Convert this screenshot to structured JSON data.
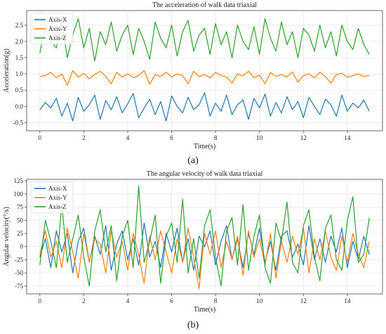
{
  "figure": {
    "panels": [
      {
        "letter": "(a)"
      },
      {
        "letter": "(b)"
      }
    ]
  },
  "colors": {
    "x": "#1f77b4",
    "y": "#ff7f0e",
    "z": "#2ca02c",
    "grid": "#e6e6e6",
    "frame": "#444444"
  },
  "chart_data": [
    {
      "type": "line",
      "title": "The acceleration of walk data triaxial",
      "xlabel": "Time(s)",
      "ylabel": "Acceleration(g)",
      "xlim": [
        -0.6,
        15.6
      ],
      "ylim": [
        -0.75,
        2.95
      ],
      "xticks": [
        0,
        2,
        4,
        6,
        8,
        10,
        12,
        14
      ],
      "yticks": [
        -0.5,
        0.0,
        0.5,
        1.0,
        1.5,
        2.0,
        2.5
      ],
      "ytick_labels": [
        "-0.5",
        "0.0",
        "0.5",
        "1.0",
        "1.5",
        "2.0",
        "2.5"
      ],
      "grid": true,
      "legend": "top-left",
      "x": [
        0,
        0.25,
        0.5,
        0.75,
        1,
        1.25,
        1.5,
        1.75,
        2,
        2.25,
        2.5,
        2.75,
        3,
        3.25,
        3.5,
        3.75,
        4,
        4.25,
        4.5,
        4.75,
        5,
        5.25,
        5.5,
        5.75,
        6,
        6.25,
        6.5,
        6.75,
        7,
        7.25,
        7.5,
        7.75,
        8,
        8.25,
        8.5,
        8.75,
        9,
        9.25,
        9.5,
        9.75,
        10,
        10.25,
        10.5,
        10.75,
        11,
        11.25,
        11.5,
        11.75,
        12,
        12.25,
        12.5,
        12.75,
        13,
        13.25,
        13.5,
        13.75,
        14,
        14.25,
        14.5,
        14.75,
        15
      ],
      "series": [
        {
          "name": "Axis-X",
          "values": [
            -0.1,
            0.12,
            -0.05,
            0.25,
            -0.3,
            0.1,
            -0.45,
            0.28,
            -0.15,
            0.05,
            0.35,
            -0.4,
            0.18,
            -0.1,
            0.3,
            -0.2,
            0.08,
            0.4,
            -0.35,
            -0.05,
            0.22,
            -0.25,
            0.15,
            -0.45,
            0.32,
            0.0,
            -0.2,
            0.28,
            -0.1,
            0.05,
            0.42,
            -0.3,
            0.1,
            -0.15,
            0.35,
            -0.25,
            0.05,
            0.2,
            -0.4,
            0.25,
            -0.05,
            0.38,
            -0.3,
            0.12,
            -0.2,
            0.3,
            -0.1,
            0.15,
            -0.35,
            0.28,
            0.0,
            -0.25,
            0.22,
            0.05,
            -0.3,
            0.35,
            -0.15,
            0.1,
            -0.05,
            0.2,
            -0.15
          ]
        },
        {
          "name": "Axis-Y",
          "values": [
            0.92,
            0.95,
            1.05,
            0.88,
            1.0,
            0.65,
            1.1,
            0.9,
            1.02,
            0.85,
            0.98,
            1.08,
            0.92,
            0.7,
            1.05,
            0.9,
            1.0,
            0.88,
            0.95,
            1.1,
            0.68,
            0.98,
            0.92,
            1.05,
            0.9,
            1.0,
            0.95,
            0.7,
            1.08,
            0.92,
            0.98,
            0.88,
            1.05,
            0.95,
            0.9,
            0.72,
            1.0,
            0.94,
            1.08,
            0.88,
            0.96,
            0.7,
            1.04,
            0.92,
            0.98,
            0.9,
            1.06,
            0.74,
            0.95,
            1.0,
            0.88,
            1.05,
            0.92,
            0.72,
            0.98,
            1.02,
            0.9,
            0.95,
            1.0,
            0.92,
            0.95
          ]
        },
        {
          "name": "Axis-Z",
          "values": [
            1.65,
            2.5,
            2.0,
            1.8,
            2.6,
            1.5,
            2.2,
            2.7,
            1.8,
            2.4,
            1.4,
            2.3,
            1.9,
            2.6,
            1.7,
            2.2,
            2.5,
            1.6,
            2.4,
            2.0,
            1.45,
            2.6,
            2.1,
            1.8,
            2.5,
            1.55,
            2.3,
            2.65,
            1.7,
            2.2,
            2.4,
            1.6,
            2.55,
            1.9,
            2.3,
            1.5,
            2.5,
            2.0,
            1.75,
            2.45,
            1.6,
            2.7,
            2.1,
            1.7,
            2.6,
            1.9,
            2.3,
            1.5,
            2.4,
            2.2,
            1.7,
            2.5,
            1.8,
            2.3,
            1.55,
            2.5,
            2.0,
            1.75,
            2.4,
            1.9,
            1.6
          ]
        }
      ]
    },
    {
      "type": "line",
      "title": "The angular velocity of walk data triaxial",
      "xlabel": "Time(s)",
      "ylabel": "Angular velocity(°/s)",
      "xlim": [
        -0.6,
        15.6
      ],
      "ylim": [
        -90,
        128
      ],
      "xticks": [
        0,
        2,
        4,
        6,
        8,
        10,
        12,
        14
      ],
      "yticks": [
        -75,
        -50,
        -25,
        0,
        25,
        50,
        75,
        100,
        125
      ],
      "ytick_labels": [
        "-75",
        "-50",
        "-25",
        "0",
        "25",
        "50",
        "75",
        "100",
        "125"
      ],
      "grid": true,
      "legend": "top-left",
      "x": [
        0,
        0.25,
        0.5,
        0.75,
        1,
        1.25,
        1.5,
        1.75,
        2,
        2.25,
        2.5,
        2.75,
        3,
        3.25,
        3.5,
        3.75,
        4,
        4.25,
        4.5,
        4.75,
        5,
        5.25,
        5.5,
        5.75,
        6,
        6.25,
        6.5,
        6.75,
        7,
        7.25,
        7.5,
        7.75,
        8,
        8.25,
        8.5,
        8.75,
        9,
        9.25,
        9.5,
        9.75,
        10,
        10.25,
        10.5,
        10.75,
        11,
        11.25,
        11.5,
        11.75,
        12,
        12.25,
        12.5,
        12.75,
        13,
        13.25,
        13.5,
        13.75,
        14,
        14.25,
        14.5,
        14.75,
        15
      ],
      "series": [
        {
          "name": "Axis-X",
          "values": [
            -20,
            15,
            -40,
            30,
            -10,
            25,
            -50,
            10,
            35,
            -30,
            20,
            -15,
            40,
            -45,
            5,
            30,
            -25,
            15,
            -35,
            45,
            -20,
            10,
            -40,
            25,
            -10,
            35,
            -30,
            15,
            -45,
            20,
            0,
            30,
            -35,
            10,
            40,
            -25,
            15,
            -40,
            25,
            -15,
            35,
            -30,
            10,
            -45,
            20,
            30,
            -20,
            5,
            -35,
            40,
            -25,
            15,
            -30,
            20,
            -10,
            35,
            -40,
            10,
            -25,
            20,
            -15
          ]
        },
        {
          "name": "Axis-Y",
          "values": [
            -15,
            30,
            -20,
            10,
            -40,
            35,
            -10,
            -60,
            25,
            -30,
            15,
            5,
            -50,
            30,
            -20,
            10,
            -45,
            25,
            -15,
            -70,
            20,
            -25,
            30,
            -10,
            -50,
            15,
            -30,
            35,
            -20,
            -80,
            25,
            -15,
            30,
            -40,
            10,
            -25,
            20,
            -55,
            30,
            -20,
            15,
            -35,
            25,
            -60,
            10,
            -30,
            20,
            -15,
            35,
            -50,
            15,
            -25,
            30,
            -20,
            -45,
            20,
            -30,
            25,
            -15,
            -40,
            10
          ]
        },
        {
          "name": "Axis-Z",
          "values": [
            -35,
            50,
            10,
            -40,
            80,
            -30,
            15,
            60,
            -20,
            -75,
            30,
            70,
            -10,
            40,
            -65,
            20,
            50,
            -40,
            115,
            -30,
            10,
            60,
            -70,
            20,
            45,
            -30,
            90,
            -50,
            15,
            -60,
            40,
            70,
            -20,
            -75,
            30,
            55,
            -35,
            80,
            -45,
            20,
            60,
            -40,
            -70,
            45,
            10,
            85,
            -30,
            -50,
            40,
            70,
            -20,
            -65,
            35,
            60,
            -25,
            -45,
            50,
            95,
            -30,
            -15,
            55
          ]
        }
      ]
    }
  ]
}
